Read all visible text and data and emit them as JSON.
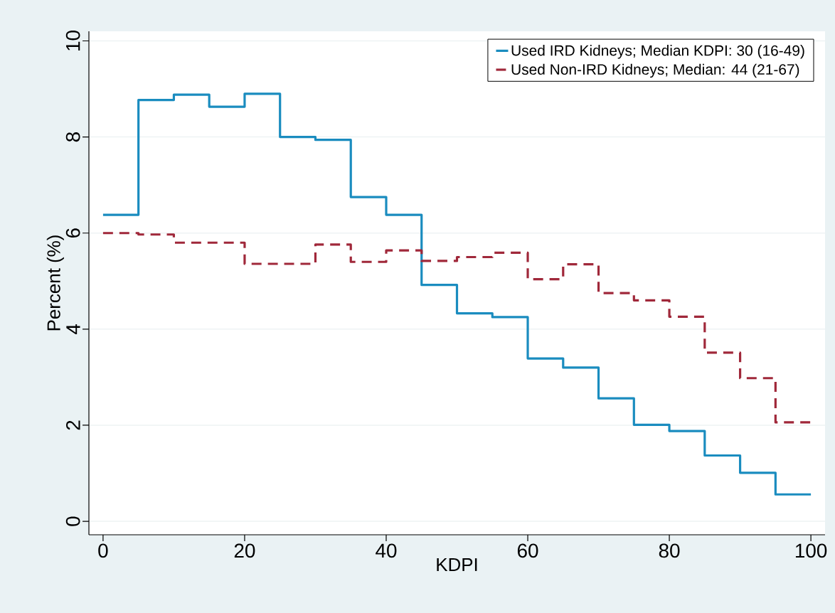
{
  "chart_data": {
    "type": "histogram",
    "xlabel": "KDPI",
    "ylabel": "Percent (%)",
    "bins": [
      0,
      5,
      10,
      15,
      20,
      25,
      30,
      35,
      40,
      45,
      50,
      55,
      60,
      65,
      70,
      75,
      80,
      85,
      90,
      95,
      100
    ],
    "series": [
      {
        "name": "Used IRD Kidneys; Median KDPI: 30 (16-49)",
        "color": "#1a8cbf",
        "line_style": "solid",
        "values": [
          6.38,
          8.77,
          8.88,
          8.63,
          8.9,
          8.0,
          7.94,
          6.75,
          6.38,
          4.92,
          4.33,
          4.25,
          3.39,
          3.2,
          2.56,
          2.01,
          1.88,
          1.37,
          1.01,
          0.56
        ]
      },
      {
        "name": "Used Non-IRD Kidneys;   Median: 44 (21-67)",
        "color": "#a0283a",
        "line_style": "dashed",
        "values": [
          6.0,
          5.97,
          5.8,
          5.8,
          5.36,
          5.36,
          5.76,
          5.4,
          5.64,
          5.42,
          5.5,
          5.59,
          5.04,
          5.35,
          4.75,
          4.6,
          4.26,
          3.51,
          2.98,
          2.06
        ]
      }
    ],
    "xlim": [
      -2,
      102
    ],
    "ylim": [
      -0.28,
      10.2
    ],
    "xticks": [
      0,
      20,
      40,
      60,
      80,
      100
    ],
    "yticks": [
      0,
      2,
      4,
      6,
      8,
      10
    ],
    "grid": "y",
    "legend": "top right"
  }
}
